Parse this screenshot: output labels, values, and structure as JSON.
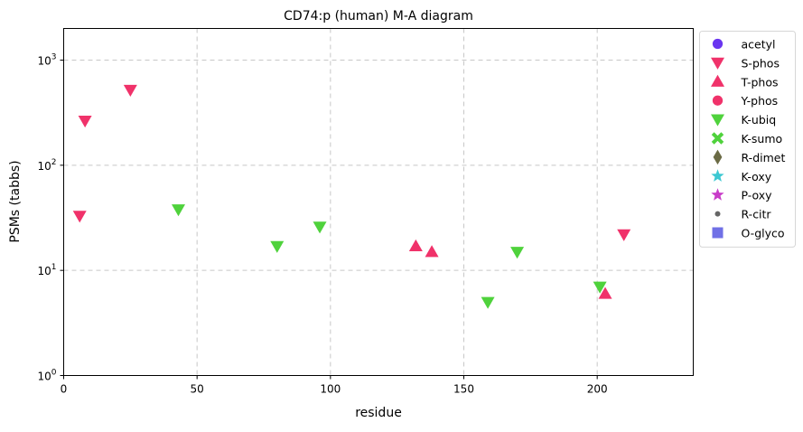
{
  "chart_data": {
    "type": "scatter",
    "title": "CD74:p (human) M-A diagram",
    "xlabel": "residue",
    "ylabel": "PSMs (tabbs)",
    "xlim": [
      0,
      236
    ],
    "ylim": [
      1,
      2000
    ],
    "yscale": "log",
    "grid": true,
    "legend_position": "outside-right",
    "x_ticks": [
      {
        "value": 0,
        "label": "0"
      },
      {
        "value": 50,
        "label": "50"
      },
      {
        "value": 100,
        "label": "100"
      },
      {
        "value": 150,
        "label": "150"
      },
      {
        "value": 200,
        "label": "200"
      }
    ],
    "y_ticks": [
      {
        "value": 1,
        "base": "10",
        "exp": "0"
      },
      {
        "value": 10,
        "base": "10",
        "exp": "1"
      },
      {
        "value": 100,
        "base": "10",
        "exp": "2"
      },
      {
        "value": 1000,
        "base": "10",
        "exp": "3"
      }
    ],
    "series": [
      {
        "name": "acetyl",
        "marker": "circle",
        "color": "#6a35f0",
        "points": []
      },
      {
        "name": "S-phos",
        "marker": "triangle-down",
        "color": "#f0326a",
        "points": [
          [
            6,
            33
          ],
          [
            8,
            265
          ],
          [
            25,
            520
          ],
          [
            210,
            22
          ]
        ]
      },
      {
        "name": "T-phos",
        "marker": "triangle-up",
        "color": "#f0326a",
        "points": [
          [
            132,
            17
          ],
          [
            138,
            15
          ],
          [
            203,
            6
          ]
        ]
      },
      {
        "name": "Y-phos",
        "marker": "circle",
        "color": "#f0326a",
        "points": []
      },
      {
        "name": "K-ubiq",
        "marker": "triangle-down",
        "color": "#4fd23c",
        "points": [
          [
            43,
            38
          ],
          [
            80,
            17
          ],
          [
            96,
            26
          ],
          [
            159,
            5
          ],
          [
            170,
            15
          ],
          [
            201,
            7
          ]
        ]
      },
      {
        "name": "K-sumo",
        "marker": "x-cross",
        "color": "#4fd23c",
        "points": []
      },
      {
        "name": "R-dimet",
        "marker": "diamond",
        "color": "#6b6b45",
        "points": []
      },
      {
        "name": "K-oxy",
        "marker": "star",
        "color": "#3cc8d2",
        "points": []
      },
      {
        "name": "P-oxy",
        "marker": "star",
        "color": "#c83cc8",
        "points": []
      },
      {
        "name": "R-citr",
        "marker": "dot",
        "color": "#666666",
        "points": []
      },
      {
        "name": "O-glyco",
        "marker": "square",
        "color": "#7070e6",
        "points": []
      }
    ]
  }
}
